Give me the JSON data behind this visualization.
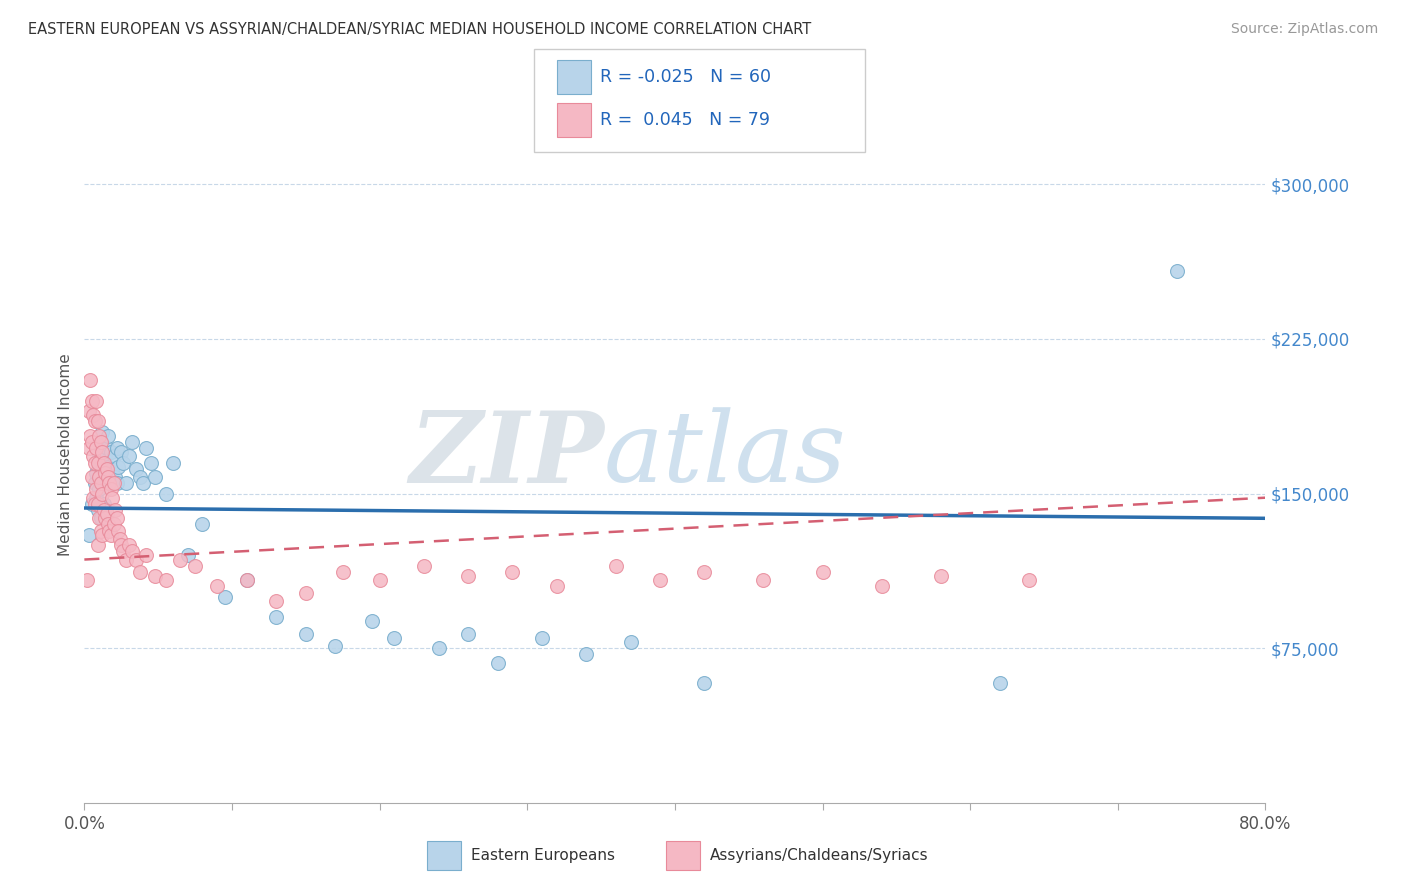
{
  "title": "EASTERN EUROPEAN VS ASSYRIAN/CHALDEAN/SYRIAC MEDIAN HOUSEHOLD INCOME CORRELATION CHART",
  "source": "Source: ZipAtlas.com",
  "ylabel": "Median Household Income",
  "xlim": [
    0.0,
    0.8
  ],
  "ylim": [
    0,
    337500
  ],
  "ytick_vals": [
    75000,
    150000,
    225000,
    300000
  ],
  "ytick_labels": [
    "$75,000",
    "$150,000",
    "$225,000",
    "$300,000"
  ],
  "blue_R": -0.025,
  "blue_N": 60,
  "pink_R": 0.045,
  "pink_N": 79,
  "blue_face": "#b8d4ea",
  "blue_edge": "#7aaecd",
  "pink_face": "#f5b8c4",
  "pink_edge": "#e88a9a",
  "trend_blue_color": "#2b6ead",
  "trend_pink_color": "#d45f72",
  "grid_color": "#c8d8e8",
  "watermark_zip_color": "#c8d8ea",
  "watermark_atlas_color": "#a8c4d8",
  "legend_label_blue": "Eastern Europeans",
  "legend_label_pink": "Assyrians/Chaldeans/Syriacs",
  "blue_points_x": [
    0.003,
    0.005,
    0.007,
    0.008,
    0.008,
    0.009,
    0.009,
    0.01,
    0.01,
    0.011,
    0.011,
    0.012,
    0.012,
    0.013,
    0.013,
    0.014,
    0.015,
    0.015,
    0.016,
    0.016,
    0.017,
    0.018,
    0.018,
    0.019,
    0.02,
    0.021,
    0.022,
    0.022,
    0.023,
    0.025,
    0.026,
    0.028,
    0.03,
    0.032,
    0.035,
    0.038,
    0.04,
    0.042,
    0.045,
    0.048,
    0.055,
    0.06,
    0.07,
    0.08,
    0.095,
    0.11,
    0.13,
    0.15,
    0.17,
    0.195,
    0.21,
    0.24,
    0.26,
    0.28,
    0.31,
    0.34,
    0.37,
    0.42,
    0.62,
    0.74
  ],
  "blue_points_y": [
    130000,
    145000,
    155000,
    160000,
    148000,
    170000,
    142000,
    165000,
    152000,
    175000,
    138000,
    180000,
    162000,
    158000,
    145000,
    168000,
    172000,
    155000,
    178000,
    163000,
    158000,
    170000,
    155000,
    162000,
    168000,
    158000,
    172000,
    155000,
    163000,
    170000,
    165000,
    155000,
    168000,
    175000,
    162000,
    158000,
    155000,
    172000,
    165000,
    158000,
    150000,
    165000,
    120000,
    135000,
    100000,
    108000,
    90000,
    82000,
    76000,
    88000,
    80000,
    75000,
    82000,
    68000,
    80000,
    72000,
    78000,
    58000,
    58000,
    258000
  ],
  "pink_points_x": [
    0.002,
    0.003,
    0.003,
    0.004,
    0.004,
    0.005,
    0.005,
    0.005,
    0.006,
    0.006,
    0.006,
    0.007,
    0.007,
    0.007,
    0.008,
    0.008,
    0.008,
    0.009,
    0.009,
    0.009,
    0.009,
    0.01,
    0.01,
    0.01,
    0.011,
    0.011,
    0.011,
    0.012,
    0.012,
    0.012,
    0.013,
    0.013,
    0.014,
    0.014,
    0.015,
    0.015,
    0.016,
    0.016,
    0.017,
    0.017,
    0.018,
    0.018,
    0.019,
    0.02,
    0.02,
    0.021,
    0.022,
    0.023,
    0.024,
    0.025,
    0.026,
    0.028,
    0.03,
    0.032,
    0.035,
    0.038,
    0.042,
    0.048,
    0.055,
    0.065,
    0.075,
    0.09,
    0.11,
    0.13,
    0.15,
    0.175,
    0.2,
    0.23,
    0.26,
    0.29,
    0.32,
    0.36,
    0.39,
    0.42,
    0.46,
    0.5,
    0.54,
    0.58,
    0.64
  ],
  "pink_points_y": [
    108000,
    190000,
    172000,
    205000,
    178000,
    195000,
    175000,
    158000,
    188000,
    168000,
    148000,
    185000,
    165000,
    145000,
    195000,
    172000,
    152000,
    185000,
    165000,
    145000,
    125000,
    178000,
    158000,
    138000,
    175000,
    155000,
    132000,
    170000,
    150000,
    130000,
    165000,
    142000,
    160000,
    138000,
    162000,
    140000,
    158000,
    135000,
    155000,
    132000,
    152000,
    130000,
    148000,
    155000,
    135000,
    142000,
    138000,
    132000,
    128000,
    125000,
    122000,
    118000,
    125000,
    122000,
    118000,
    112000,
    120000,
    110000,
    108000,
    118000,
    115000,
    105000,
    108000,
    98000,
    102000,
    112000,
    108000,
    115000,
    110000,
    112000,
    105000,
    115000,
    108000,
    112000,
    108000,
    112000,
    105000,
    110000,
    108000
  ],
  "blue_trend_y0": 143000,
  "blue_trend_y1": 138000,
  "pink_trend_y0": 118000,
  "pink_trend_y1": 148000
}
